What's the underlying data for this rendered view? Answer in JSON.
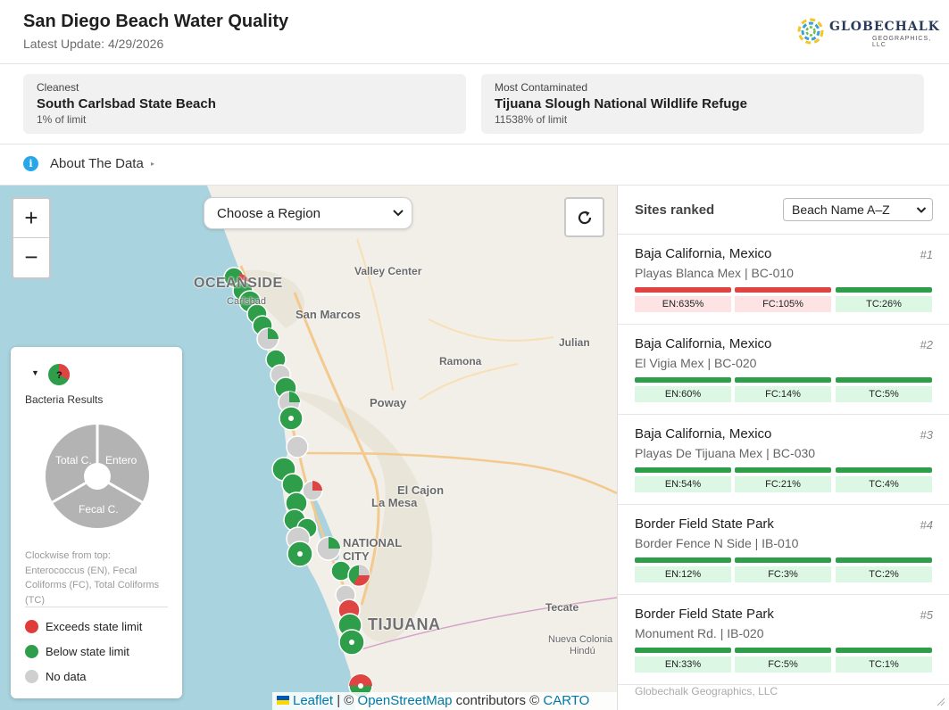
{
  "header": {
    "title": "San Diego Beach Water Quality",
    "subtitle": "Latest Update: 4/29/2026",
    "logo_name": "GLOBECHALK",
    "logo_tagline": "GEOGRAPHICS, LLC"
  },
  "summary": {
    "cleanest": {
      "label": "Cleanest",
      "name": "South Carlsbad State Beach",
      "value": "1% of limit"
    },
    "most_contaminated": {
      "label": "Most Contaminated",
      "name": "Tijuana Slough National Wildlife Refuge",
      "value": "11538% of limit"
    }
  },
  "about": {
    "label": "About The Data",
    "icon": "info-icon"
  },
  "map": {
    "zoom_in": "+",
    "zoom_out": "−",
    "region_select": "Choose a Region",
    "reset_icon": "refresh-icon",
    "places": {
      "oceanside": "OCEANSIDE",
      "carlsbad": "Carlsbad",
      "valley_center": "Valley Center",
      "san_marcos": "San Marcos",
      "julian": "Julian",
      "ramona": "Ramona",
      "poway": "Poway",
      "el_cajon": "El Cajon",
      "la_mesa": "La Mesa",
      "national_city": "NATIONAL CITY",
      "tijuana": "TIJUANA",
      "tecate": "Tecate",
      "nueva_colonia": "Nueva Colonia",
      "hindu": "Hindú"
    },
    "attribution": {
      "leaflet": "Leaflet",
      "sep1": "|",
      "copy1": "©",
      "osm": "OpenStreetMap",
      "contributors": "contributors ©",
      "carto": "CARTO"
    }
  },
  "legend": {
    "toggle": "▼",
    "title": "Bacteria Results",
    "mini_icon_label": "?",
    "pie_labels": {
      "top_left": "Total C.",
      "top_right": "Entero",
      "bottom": "Fecal C."
    },
    "note": "Clockwise from top: Enterococcus (EN), Fecal Coliforms (FC), Total Coliforms (TC)",
    "items": [
      {
        "label": "Exceeds state limit",
        "color": "#e03a3a"
      },
      {
        "label": "Below state limit",
        "color": "#2f9e4a"
      },
      {
        "label": "No data",
        "color": "#cfcfcf"
      }
    ]
  },
  "sidebar": {
    "title": "Sites ranked",
    "sort_value": "Beach Name A–Z",
    "sites": [
      {
        "name": "Baja California, Mexico",
        "rank": "#1",
        "sub": "Playas Blanca Mex | BC-010",
        "bars": [
          {
            "label": "EN:635%",
            "status": "red"
          },
          {
            "label": "FC:105%",
            "status": "red"
          },
          {
            "label": "TC:26%",
            "status": "green"
          }
        ]
      },
      {
        "name": "Baja California, Mexico",
        "rank": "#2",
        "sub": "El Vigia Mex | BC-020",
        "bars": [
          {
            "label": "EN:60%",
            "status": "green"
          },
          {
            "label": "FC:14%",
            "status": "green"
          },
          {
            "label": "TC:5%",
            "status": "green"
          }
        ]
      },
      {
        "name": "Baja California, Mexico",
        "rank": "#3",
        "sub": "Playas De Tijuana Mex | BC-030",
        "bars": [
          {
            "label": "EN:54%",
            "status": "green"
          },
          {
            "label": "FC:21%",
            "status": "green"
          },
          {
            "label": "TC:4%",
            "status": "green"
          }
        ]
      },
      {
        "name": "Border Field State Park",
        "rank": "#4",
        "sub": "Border Fence N Side | IB-010",
        "bars": [
          {
            "label": "EN:12%",
            "status": "green"
          },
          {
            "label": "FC:3%",
            "status": "green"
          },
          {
            "label": "TC:2%",
            "status": "green"
          }
        ]
      },
      {
        "name": "Border Field State Park",
        "rank": "#5",
        "sub": "Monument Rd. | IB-020",
        "bars": [
          {
            "label": "EN:33%",
            "status": "green"
          },
          {
            "label": "FC:5%",
            "status": "green"
          },
          {
            "label": "TC:1%",
            "status": "green"
          }
        ]
      }
    ],
    "footer": "Globechalk Geographics, LLC"
  }
}
